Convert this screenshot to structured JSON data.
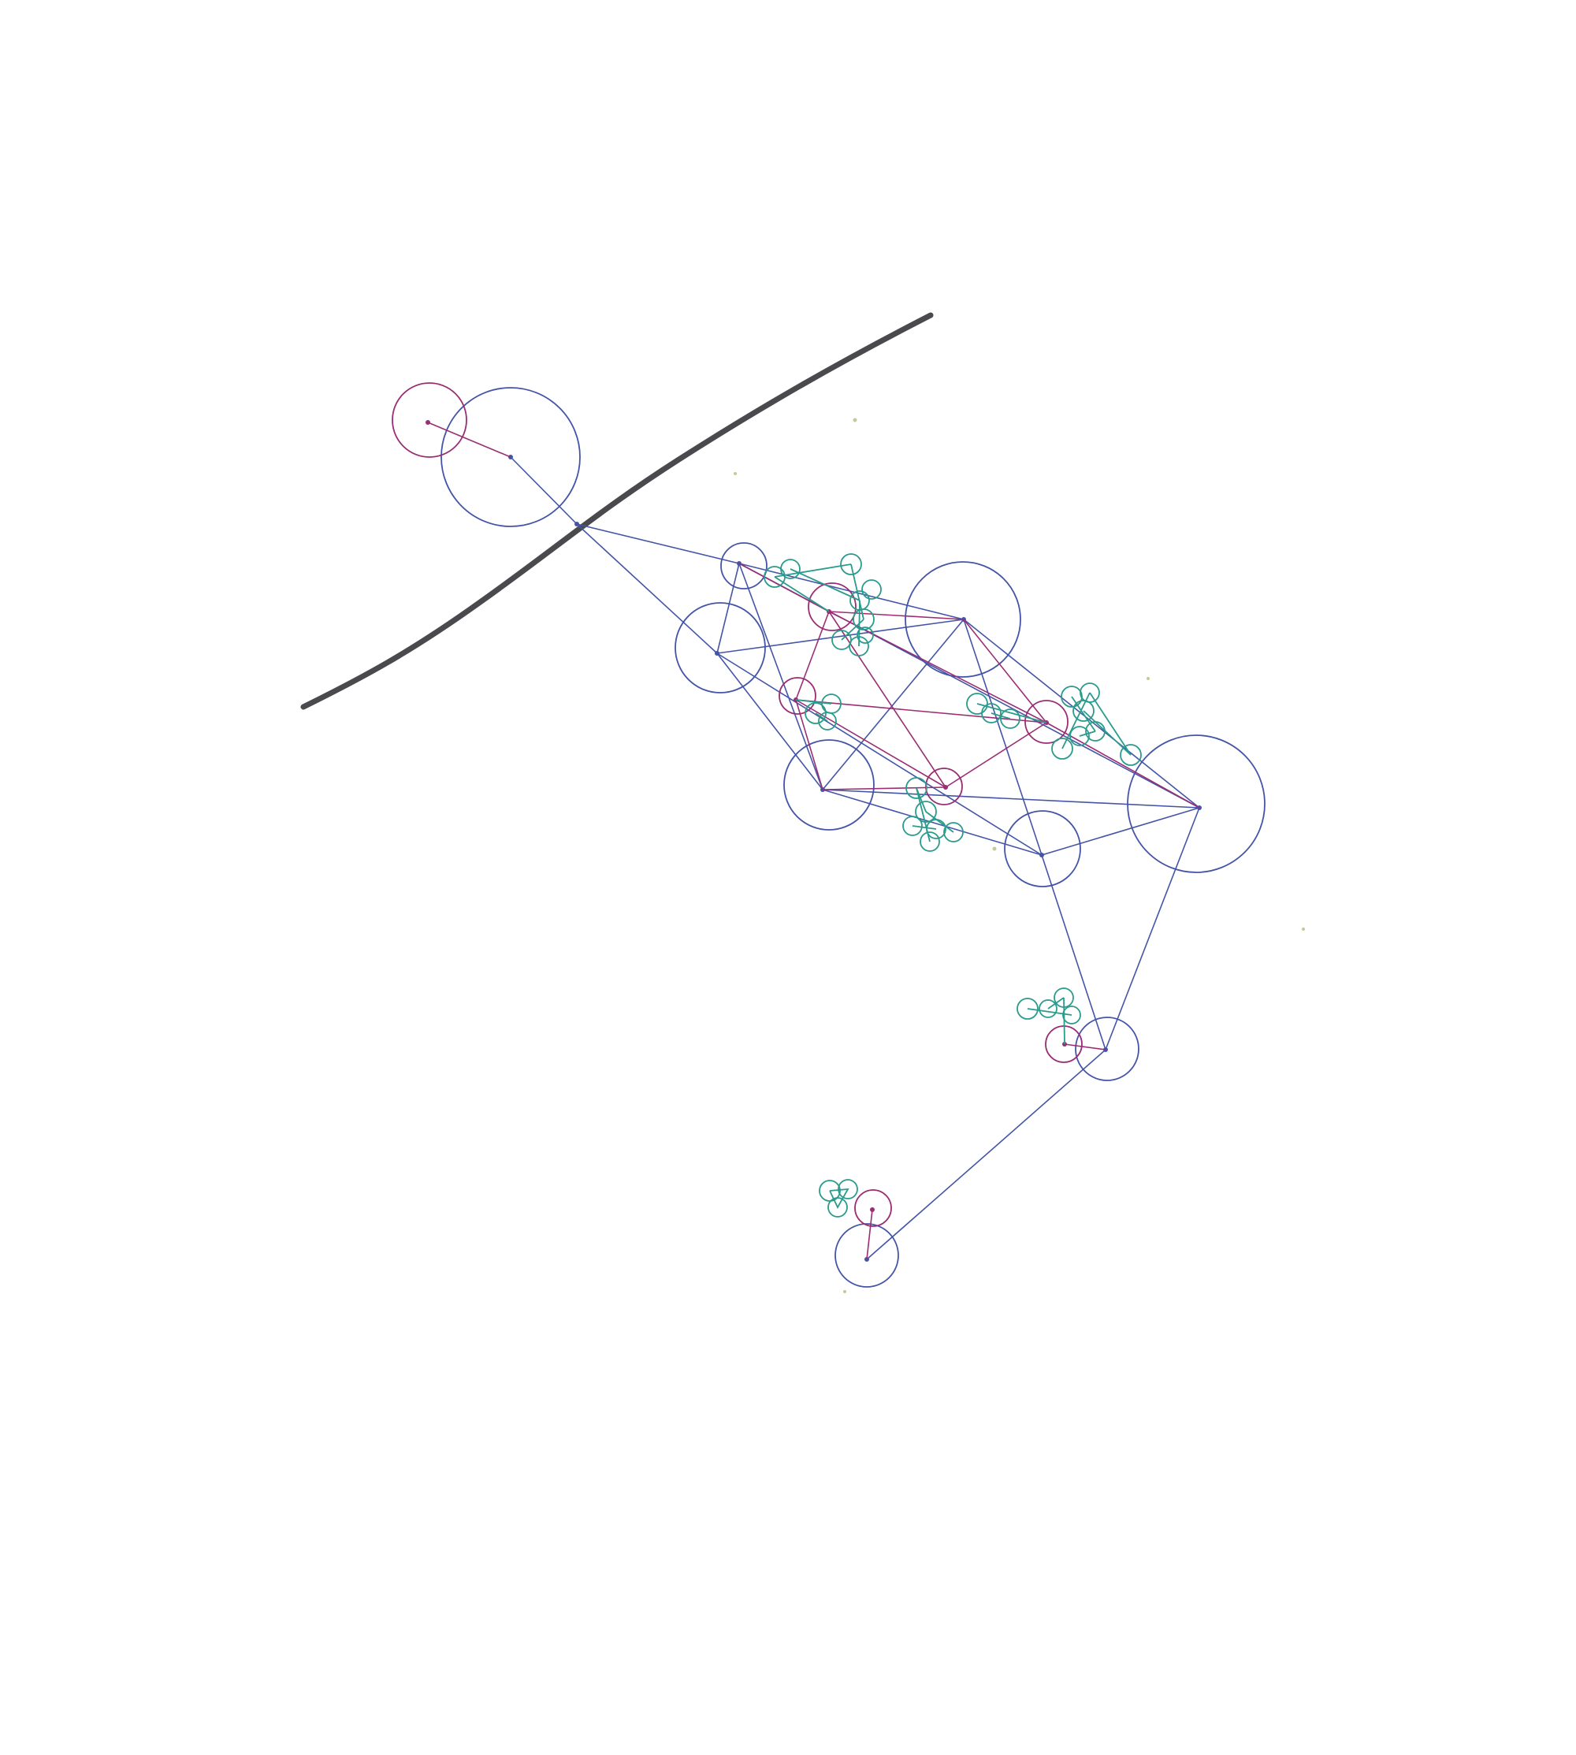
{
  "colors": {
    "paper": "#ffffff",
    "ink_black": "#4a4a4e",
    "ink_blue": "#4455a8",
    "ink_magenta": "#9a2e74",
    "ink_teal": "#2a9b8c",
    "speck": "#c8c89a"
  },
  "elements": {
    "baseline": "thick-dark-line",
    "blue_network": "blue-circles-and-lines",
    "magenta_network": "magenta-circles-and-lines",
    "teal_clusters": "small-teal-circle-clusters"
  }
}
